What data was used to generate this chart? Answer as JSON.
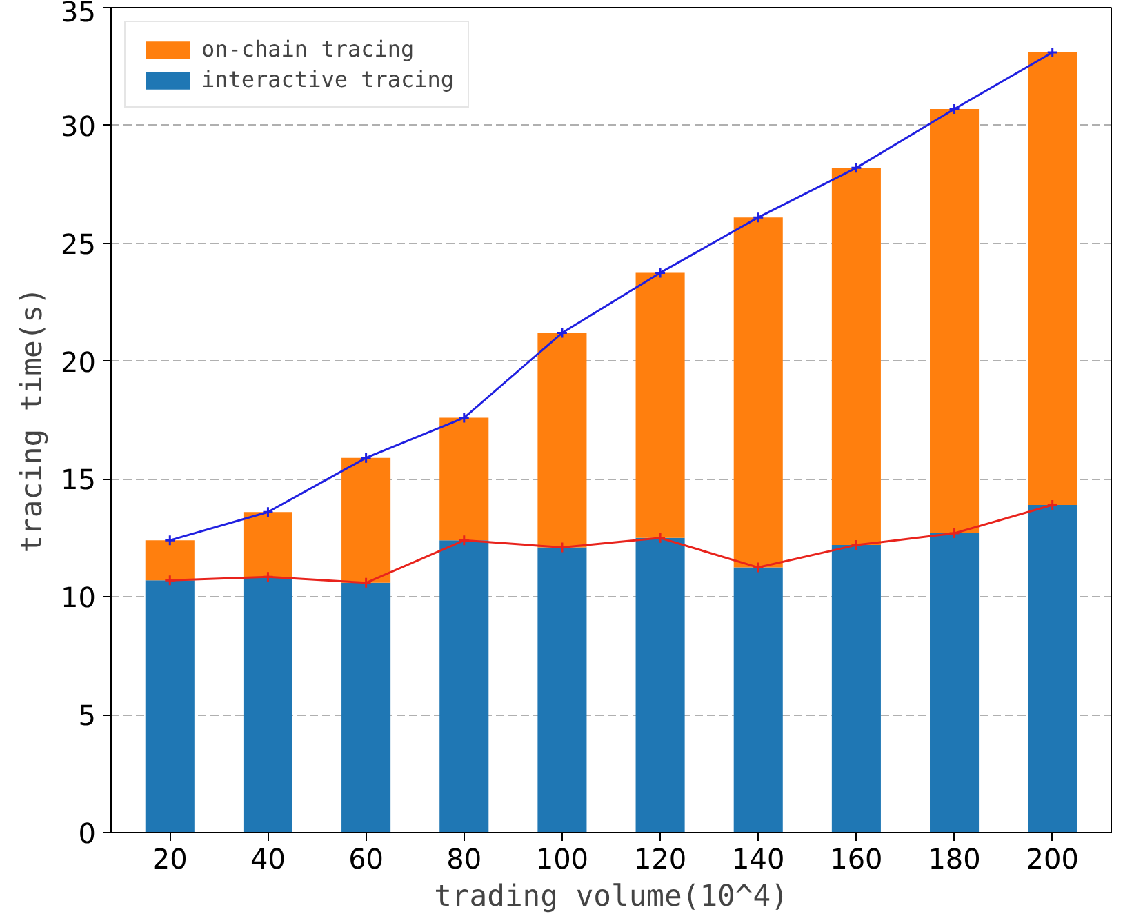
{
  "chart_data": {
    "type": "bar",
    "stacked": true,
    "xlabel": "trading volume(10^4)",
    "ylabel": "tracing time(s)",
    "categories": [
      "20",
      "40",
      "60",
      "80",
      "100",
      "120",
      "140",
      "160",
      "180",
      "200"
    ],
    "series": [
      {
        "name": "interactive tracing",
        "color": "#1f77b4",
        "values": [
          10.7,
          10.85,
          10.6,
          12.4,
          12.1,
          12.5,
          11.25,
          12.2,
          12.7,
          13.9
        ]
      },
      {
        "name": "on-chain tracing",
        "color": "#ff7f0e",
        "values": [
          1.7,
          2.75,
          5.3,
          5.2,
          9.1,
          11.25,
          14.85,
          16.0,
          18.0,
          19.2
        ]
      },
      {
        "type": "line",
        "color": "#2020e0",
        "values": [
          12.4,
          13.6,
          15.9,
          17.6,
          21.2,
          23.75,
          26.1,
          28.2,
          30.7,
          33.1
        ]
      },
      {
        "type": "line",
        "color": "#e8231c",
        "values": [
          10.7,
          10.85,
          10.6,
          12.4,
          12.1,
          12.5,
          11.25,
          12.2,
          12.7,
          13.9
        ]
      }
    ],
    "ylim": [
      0,
      35
    ],
    "yticks": [
      0,
      5,
      10,
      15,
      20,
      25,
      30,
      35
    ],
    "grid": "y",
    "legend": "top left",
    "marker": "cross",
    "line_style": "solid"
  }
}
